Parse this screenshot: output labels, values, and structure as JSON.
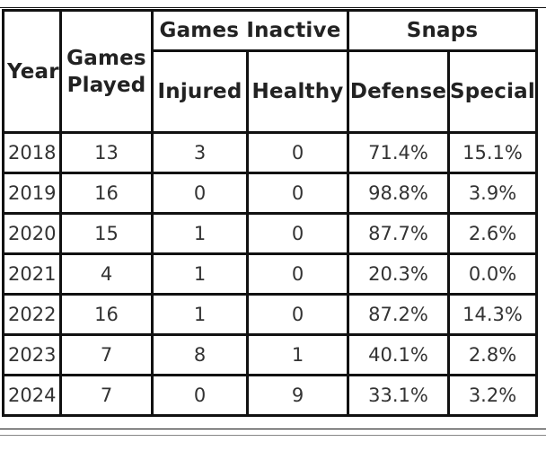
{
  "table": {
    "headers": {
      "year": "Year",
      "games_played_line1": "Games",
      "games_played_line2": "Played",
      "games_inactive": "Games Inactive",
      "snaps": "Snaps",
      "injured": "Injured",
      "healthy": "Healthy",
      "defense": "Defense",
      "special": "Special"
    },
    "rows": [
      {
        "year": "2018",
        "played": "13",
        "injured": "3",
        "healthy": "0",
        "defense": "71.4%",
        "special": "15.1%"
      },
      {
        "year": "2019",
        "played": "16",
        "injured": "0",
        "healthy": "0",
        "defense": "98.8%",
        "special": "3.9%"
      },
      {
        "year": "2020",
        "played": "15",
        "injured": "1",
        "healthy": "0",
        "defense": "87.7%",
        "special": "2.6%"
      },
      {
        "year": "2021",
        "played": "4",
        "injured": "1",
        "healthy": "0",
        "defense": "20.3%",
        "special": "0.0%"
      },
      {
        "year": "2022",
        "played": "16",
        "injured": "1",
        "healthy": "0",
        "defense": "87.2%",
        "special": "14.3%"
      },
      {
        "year": "2023",
        "played": "7",
        "injured": "8",
        "healthy": "1",
        "defense": "40.1%",
        "special": "2.8%"
      },
      {
        "year": "2024",
        "played": "7",
        "injured": "0",
        "healthy": "9",
        "defense": "33.1%",
        "special": "3.2%"
      }
    ]
  }
}
